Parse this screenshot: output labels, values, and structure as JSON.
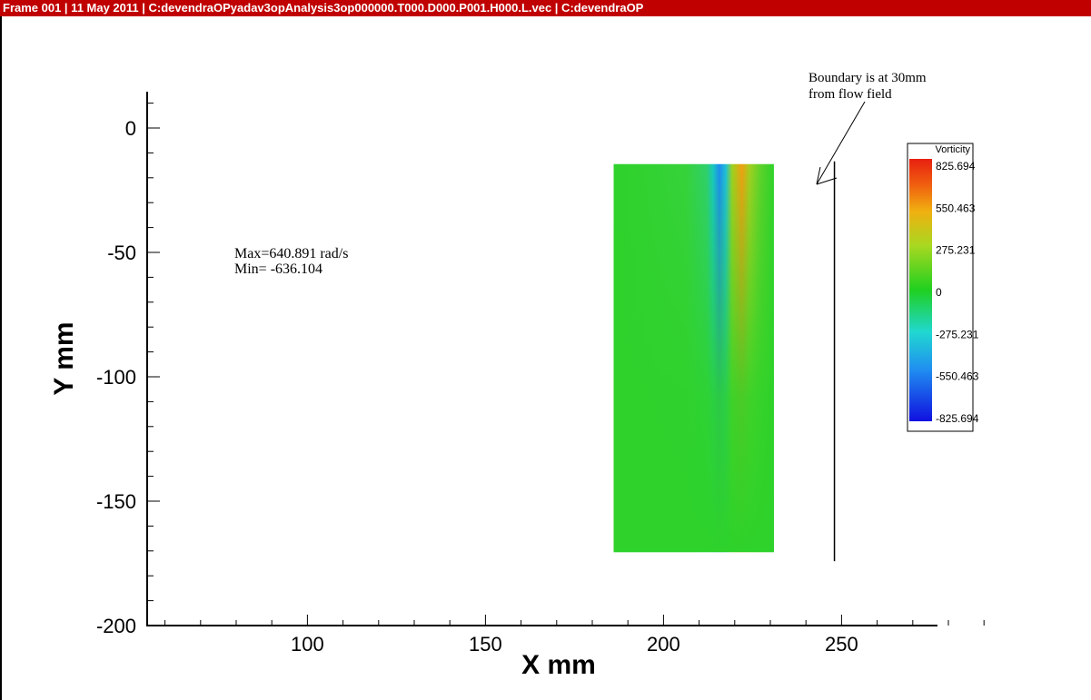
{
  "window": {
    "title": "Frame 001  |  11 May 2011  |  C:devendraOPyadav3opAnalysis3op000000.T000.D000.P001.H000.L.vec | C:devendraOP"
  },
  "chart_data": {
    "type": "heatmap",
    "title": "",
    "xlabel": "X mm",
    "ylabel": "Y mm",
    "xlim": [
      55,
      292
    ],
    "ylim": [
      -200,
      16
    ],
    "x_ticks": [
      100,
      150,
      200,
      250
    ],
    "y_ticks": [
      0,
      -50,
      -100,
      -150,
      -200
    ],
    "field": {
      "name": "Vorticity",
      "x_range": [
        186,
        231
      ],
      "y_range": [
        -170.5,
        -14.5
      ]
    },
    "colorbar": {
      "title": "Vorticity",
      "labels": [
        "825.694",
        "550.463",
        "275.231",
        "0",
        "-275.231",
        "-550.463",
        "-825.694"
      ],
      "min": -825.694,
      "max": 825.694
    },
    "annotations": {
      "max_text": "Max=640.891 rad/s",
      "min_text": "Min= -636.104",
      "boundary_line1": "Boundary is at 30mm",
      "boundary_line2": "from flow field"
    },
    "boundary_x": 248
  }
}
